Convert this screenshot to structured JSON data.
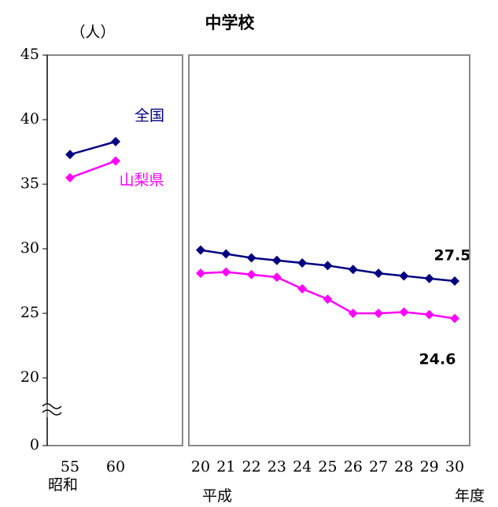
{
  "chart_data": [
    {
      "type": "line",
      "y_unit": "（人）",
      "era": "昭和",
      "categories": [
        "55",
        "60"
      ],
      "series": [
        {
          "name": "全国",
          "color": "#000080",
          "values": [
            37.3,
            38.3
          ]
        },
        {
          "name": "山梨県",
          "color": "#ff00ff",
          "values": [
            35.5,
            36.8
          ]
        }
      ],
      "ylim": [
        0,
        45
      ],
      "yticks": [
        0,
        20,
        25,
        30,
        35,
        40,
        45
      ],
      "axis_break": [
        0,
        17.5
      ]
    },
    {
      "type": "line",
      "title": "中学校",
      "era": "平成",
      "x_label": "年度",
      "categories": [
        "20",
        "21",
        "22",
        "23",
        "24",
        "25",
        "26",
        "27",
        "28",
        "29",
        "30"
      ],
      "series": [
        {
          "color": "#000080",
          "values": [
            29.9,
            29.6,
            29.3,
            29.1,
            28.9,
            28.7,
            28.4,
            28.1,
            27.9,
            27.7,
            27.5
          ]
        },
        {
          "color": "#ff00ff",
          "values": [
            28.1,
            28.2,
            28.0,
            27.8,
            26.9,
            26.1,
            25.0,
            25.0,
            25.1,
            24.9,
            24.6
          ]
        }
      ],
      "ylim": [
        0,
        45
      ],
      "axis_break": [
        0,
        17.5
      ]
    }
  ]
}
